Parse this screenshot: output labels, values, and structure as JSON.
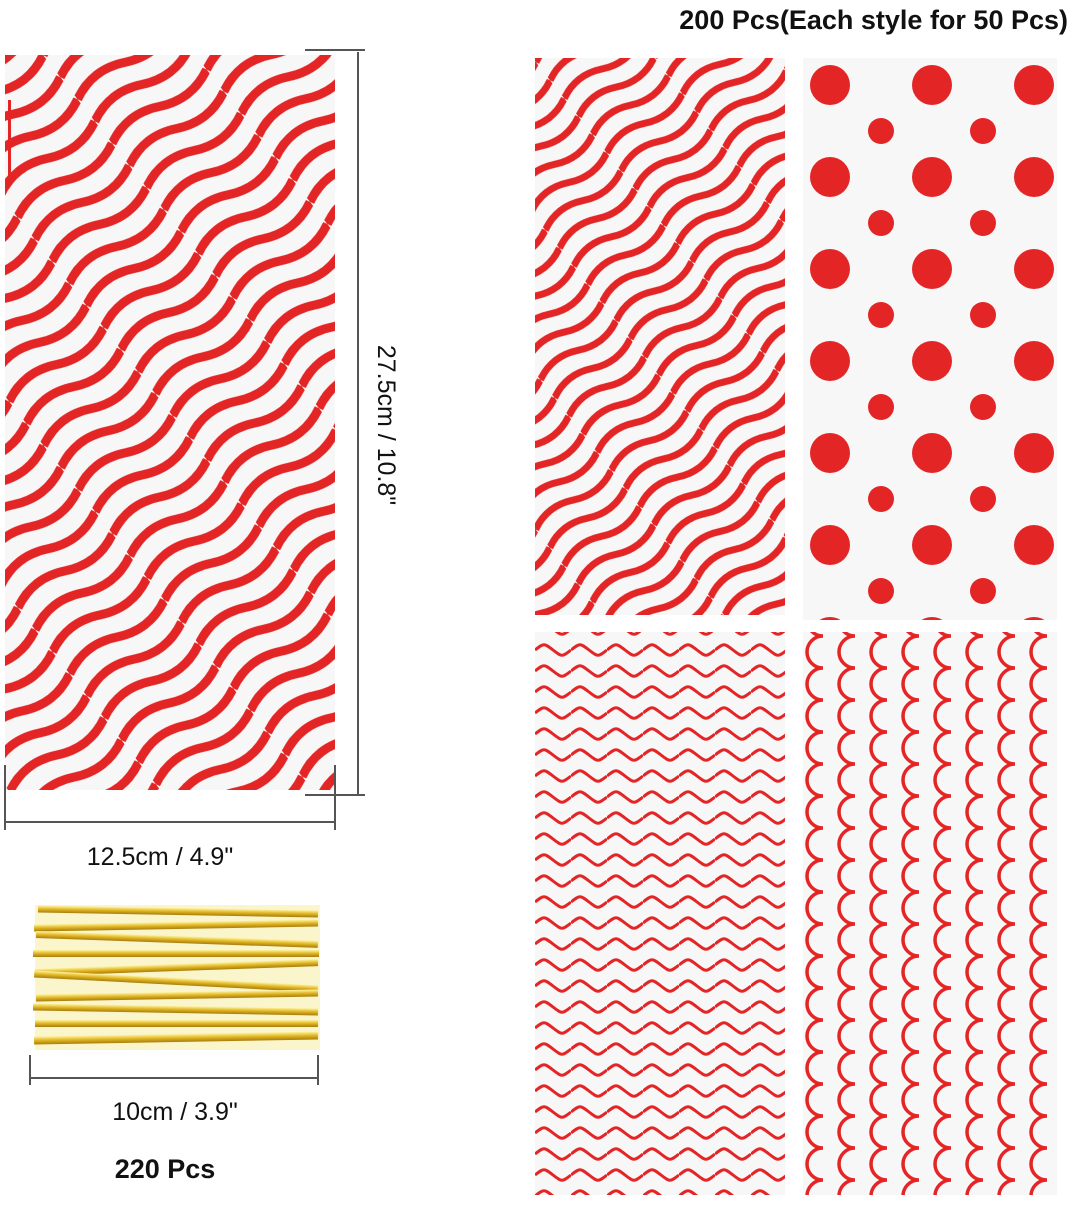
{
  "header": {
    "title": "200 Pcs(Each style for 50 Pcs)"
  },
  "bag": {
    "height_label": "27.5cm / 10.8\"",
    "width_label": "12.5cm / 4.9\""
  },
  "ties": {
    "length_label": "10cm / 3.9\"",
    "count_label": "220 Pcs"
  }
}
